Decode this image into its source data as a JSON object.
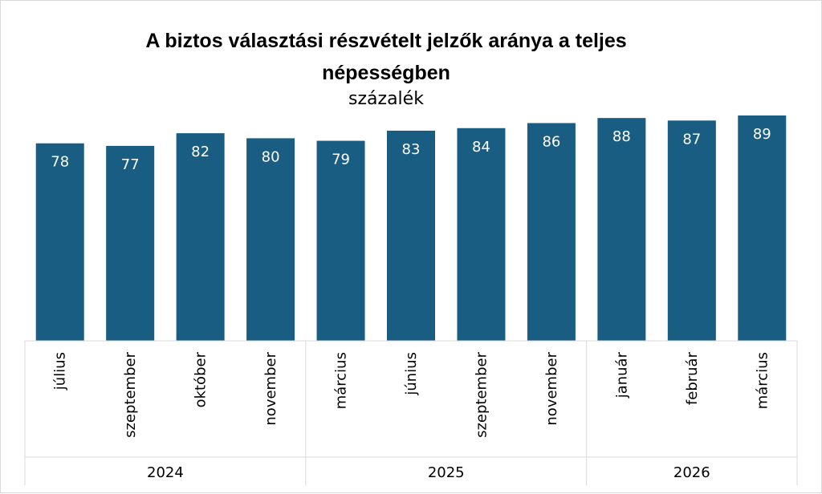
{
  "chart_data": {
    "type": "bar",
    "title": "A biztos választási részvételt jelzők aránya a teljes népességben",
    "subtitle": "százalék",
    "categories": [
      "július",
      "szeptember",
      "október",
      "november",
      "március",
      "június",
      "szeptember",
      "november",
      "január",
      "február",
      "március"
    ],
    "values": [
      78,
      77,
      82,
      80,
      79,
      83,
      84,
      86,
      88,
      87,
      89
    ],
    "groups": [
      {
        "label": "2024",
        "count": 4
      },
      {
        "label": "2025",
        "count": 4
      },
      {
        "label": "2026",
        "count": 3
      }
    ],
    "ylim": [
      0,
      89
    ],
    "xlabel": "",
    "ylabel": "",
    "bar_color": "#1a5d82",
    "grid": false
  }
}
